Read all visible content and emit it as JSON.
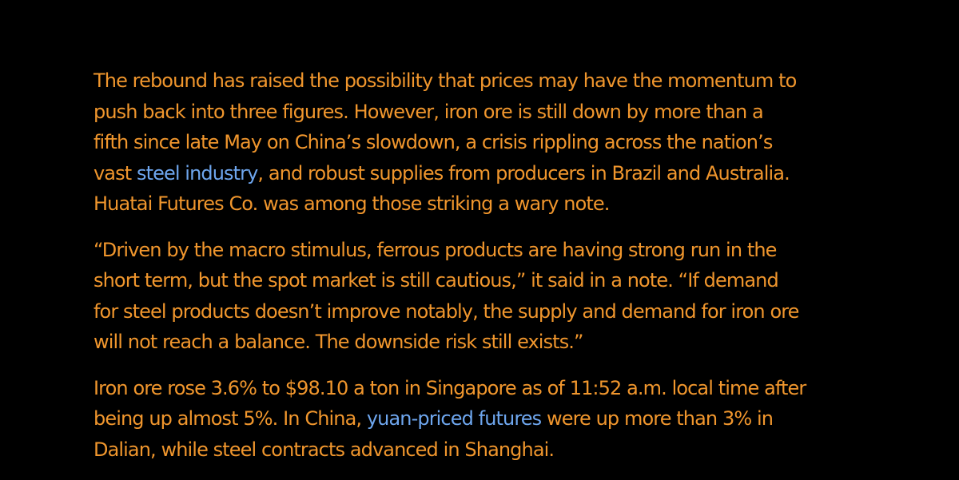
{
  "article": {
    "paragraphs": [
      {
        "lines": [
          [
            "The rebound has raised the possibility that prices may have the momentum to"
          ],
          [
            "push back into three figures. However, iron ore is still down by more than a"
          ],
          [
            "fifth since late May on China’s slowdown, a crisis rippling across the nation’s"
          ],
          [
            "vast ",
            {
              "link": "steel industry"
            },
            ", and robust supplies from producers in Brazil and Australia."
          ],
          [
            "Huatai Futures Co. was among those striking a wary note."
          ]
        ]
      },
      {
        "lines": [
          [
            "“Driven by the macro stimulus, ferrous products are having strong run in the"
          ],
          [
            "short term, but the spot market is still cautious,” it said in a note. “If demand"
          ],
          [
            "for steel products doesn’t improve notably, the supply and demand for iron ore"
          ],
          [
            "will not reach a balance. The downside risk still exists.”"
          ]
        ]
      },
      {
        "lines": [
          [
            "Iron ore rose 3.6% to $98.10 a ton in Singapore as of 11:52 a.m. local time after"
          ],
          [
            "being up almost 5%. In China, ",
            {
              "link": "yuan-priced futures"
            },
            " were up more than 3% in"
          ],
          [
            "Dalian, while steel contracts advanced in Shanghai."
          ]
        ]
      }
    ]
  },
  "colors": {
    "background": "#000000",
    "text": "#F0962D",
    "link": "#6EA6EE"
  }
}
